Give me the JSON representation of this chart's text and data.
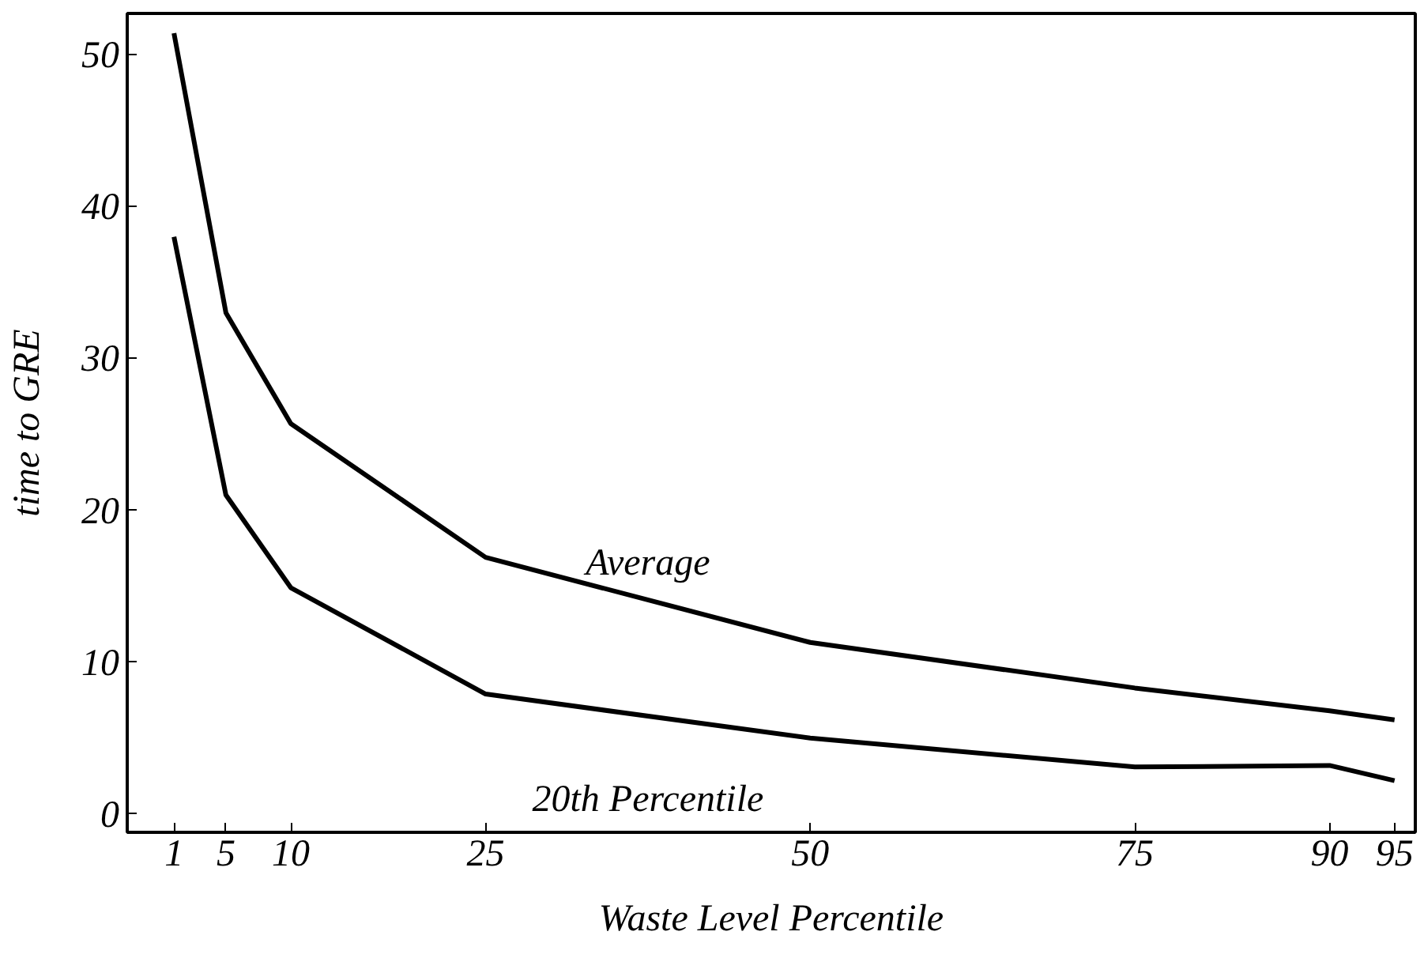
{
  "chart_data": {
    "type": "line",
    "xlabel": "Waste Level Percentile",
    "ylabel": "time to GRE",
    "x": [
      1,
      5,
      10,
      25,
      50,
      75,
      90,
      95
    ],
    "series": [
      {
        "name": "Average",
        "color": "#000000",
        "values": [
          51.4,
          33.0,
          25.7,
          16.9,
          11.3,
          8.3,
          6.8,
          6.2
        ]
      },
      {
        "name": "20th Percentile",
        "color": "#000000",
        "values": [
          38.0,
          21.0,
          14.9,
          7.9,
          5.0,
          3.1,
          3.2,
          2.2
        ]
      }
    ],
    "xlim": [
      -2.6,
      96.6
    ],
    "ylim": [
      -1.2,
      52.7
    ],
    "xticks": [
      1,
      5,
      10,
      25,
      50,
      75,
      90,
      95
    ],
    "yticks": [
      0,
      10,
      20,
      30,
      40,
      50
    ],
    "grid": false,
    "marker": "none",
    "line_style": "solid"
  }
}
